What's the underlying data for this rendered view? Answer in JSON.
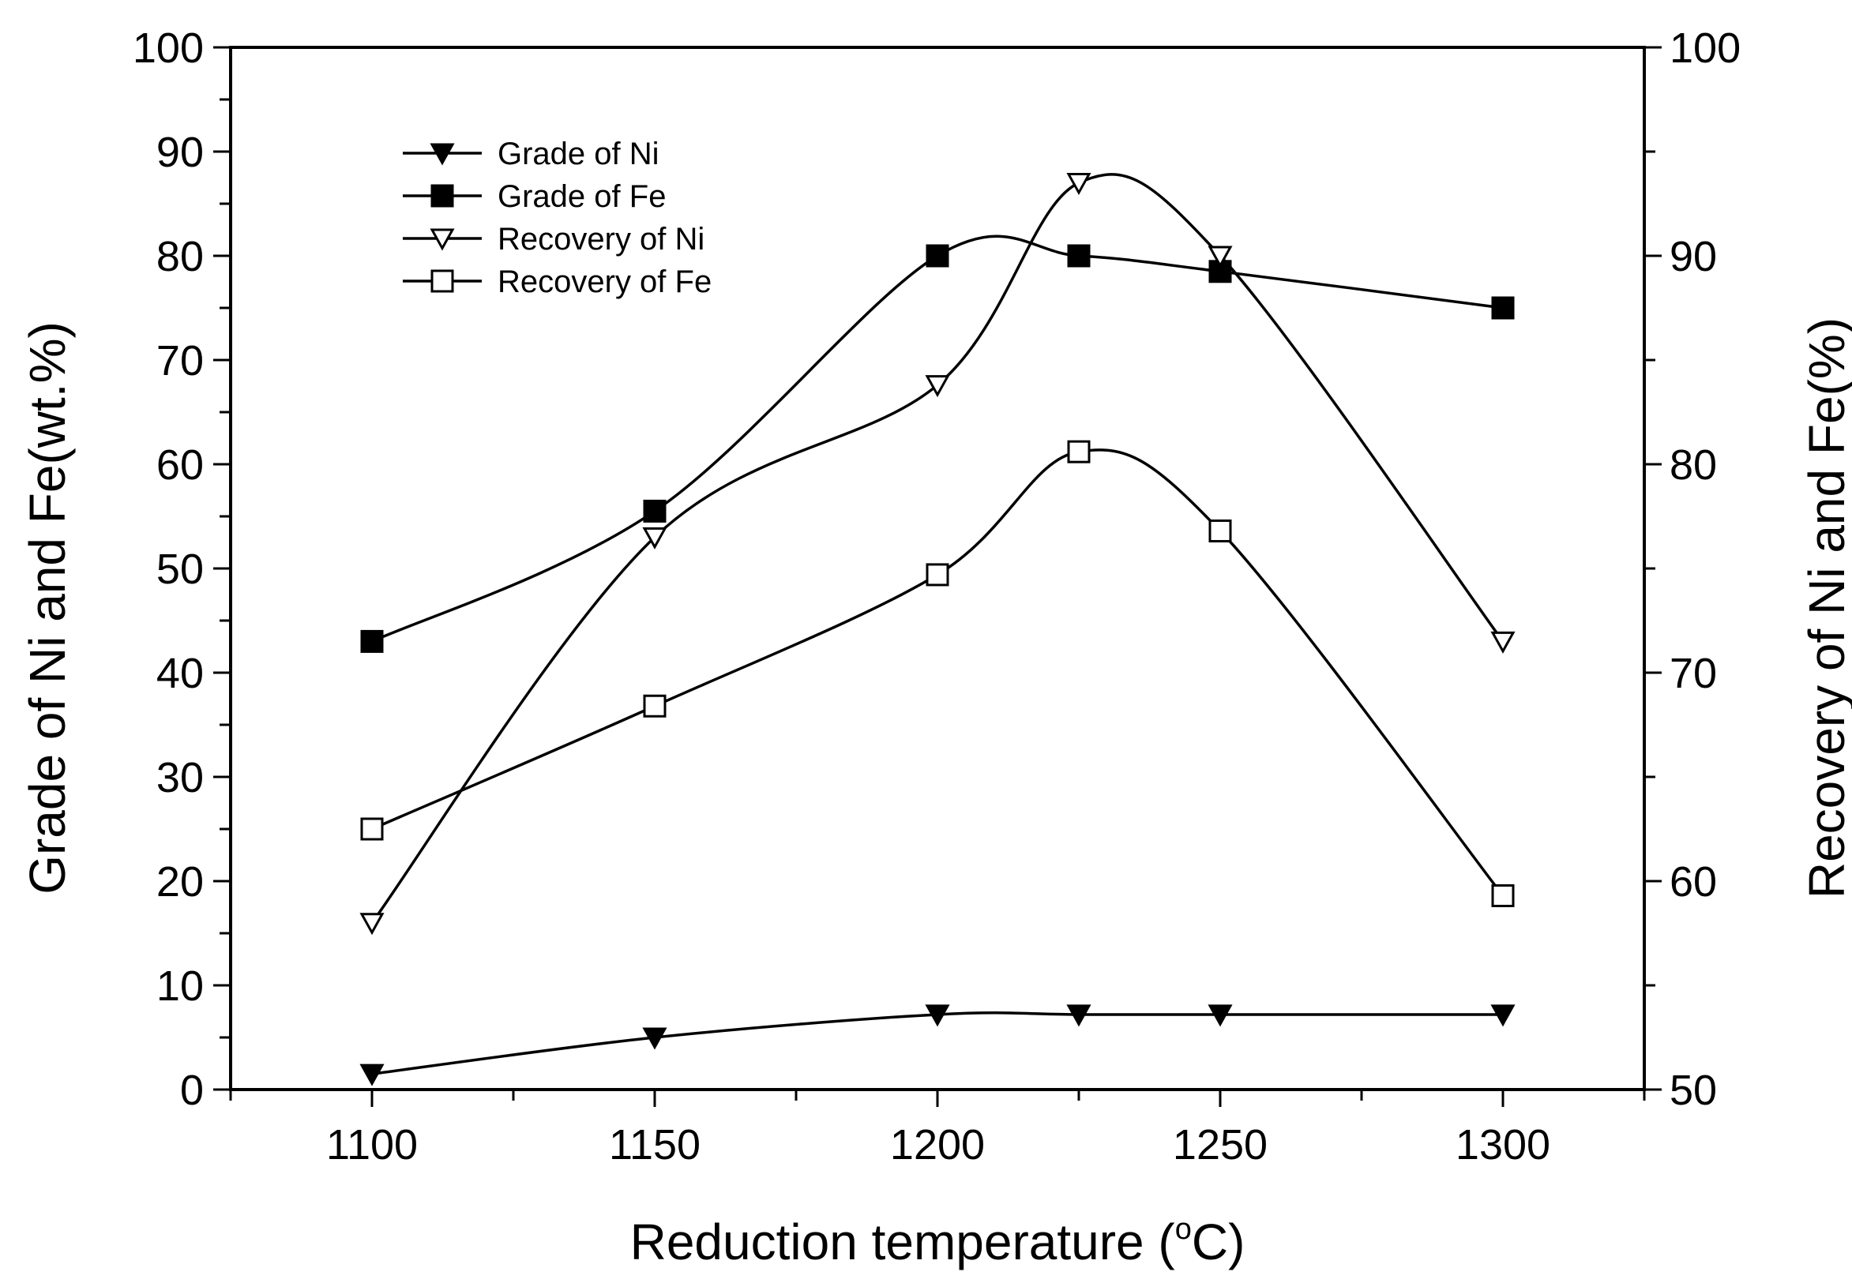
{
  "chart_data": {
    "type": "line",
    "title": "",
    "xlabel": "Reduction temperature (°C)",
    "xlabel_main": "Reduction temperature (",
    "xlabel_sup": "o",
    "xlabel_end": "C)",
    "ylabel_left": "Grade of Ni and Fe(wt.%)",
    "ylabel_right": "Recovery of Ni and Fe(%)",
    "xlim": [
      1075,
      1325
    ],
    "ylim_left": [
      0,
      100
    ],
    "ylim_right": [
      50,
      100
    ],
    "x_ticks": [
      "1100",
      "1150",
      "1200",
      "1250",
      "1300"
    ],
    "y_left_ticks": [
      "0",
      "10",
      "20",
      "30",
      "40",
      "50",
      "60",
      "70",
      "80",
      "90",
      "100"
    ],
    "y_right_ticks": [
      "50",
      "60",
      "70",
      "80",
      "90",
      "100"
    ],
    "grid": false,
    "legend_position": "top-left",
    "x": [
      1100,
      1150,
      1200,
      1225,
      1250,
      1300
    ],
    "series": [
      {
        "name": "Grade of Ni",
        "axis": "left",
        "marker": "triangle-down-filled",
        "values": [
          1.5,
          5.0,
          7.2,
          7.2,
          7.2,
          7.2
        ]
      },
      {
        "name": "Grade of Fe",
        "axis": "left",
        "marker": "square-filled",
        "values": [
          43.0,
          55.5,
          80.0,
          80.0,
          78.5,
          75.0
        ]
      },
      {
        "name": "Recovery of Ni",
        "axis": "right",
        "marker": "triangle-down-open",
        "values": [
          58.0,
          76.5,
          83.8,
          93.5,
          90.0,
          71.5
        ]
      },
      {
        "name": "Recovery of Fe",
        "axis": "right",
        "marker": "square-open",
        "values": [
          62.5,
          68.4,
          74.7,
          80.6,
          76.8,
          59.3
        ]
      }
    ]
  }
}
